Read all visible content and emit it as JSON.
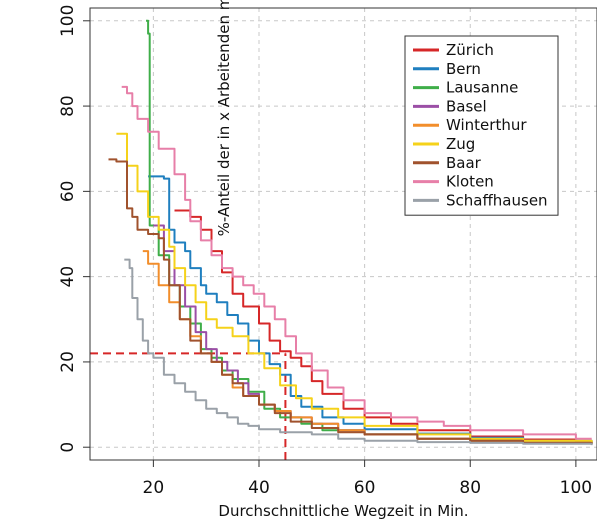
{
  "chart_data": {
    "type": "line",
    "title": "",
    "xlabel": "Durchschnittliche Wegzeit in Min.",
    "ylabel": "%-Anteil der in x Arbeitenden mit Wegzeit grösser als ...",
    "xlim": [
      8,
      104
    ],
    "ylim": [
      -3,
      103
    ],
    "xticks": [
      20,
      40,
      60,
      80,
      100
    ],
    "yticks": [
      0,
      20,
      40,
      60,
      80,
      100
    ],
    "grid": true,
    "legend_position": "top-right",
    "reference_lines": [
      {
        "type": "horizontal",
        "y": 22,
        "x_from": 8,
        "x_to": 45,
        "color": "#d62728"
      },
      {
        "type": "vertical",
        "x": 45,
        "y_from": -3,
        "y_to": 22,
        "color": "#d62728"
      }
    ],
    "series": [
      {
        "name": "Zürich",
        "color": "#d62728",
        "points": [
          [
            24,
            55.5
          ],
          [
            27,
            54
          ],
          [
            29,
            51
          ],
          [
            31,
            46
          ],
          [
            33,
            41
          ],
          [
            35,
            36
          ],
          [
            37,
            33
          ],
          [
            40,
            29
          ],
          [
            42,
            25
          ],
          [
            44,
            22.5
          ],
          [
            46,
            21
          ],
          [
            48,
            19
          ],
          [
            50,
            15.5
          ],
          [
            52,
            12.5
          ],
          [
            56,
            9
          ],
          [
            60,
            7
          ],
          [
            65,
            5.5
          ],
          [
            70,
            4
          ],
          [
            80,
            2.5
          ],
          [
            90,
            1.8
          ],
          [
            100,
            1.3
          ],
          [
            103,
            1.2
          ]
        ]
      },
      {
        "name": "Bern",
        "color": "#1f7fbf",
        "points": [
          [
            19,
            63.5
          ],
          [
            22,
            63
          ],
          [
            23,
            51
          ],
          [
            24,
            48
          ],
          [
            26,
            46
          ],
          [
            27,
            42
          ],
          [
            29,
            38
          ],
          [
            30,
            36
          ],
          [
            32,
            34
          ],
          [
            34,
            31
          ],
          [
            36,
            29
          ],
          [
            38,
            25
          ],
          [
            40,
            22
          ],
          [
            42,
            19.5
          ],
          [
            44,
            17
          ],
          [
            46,
            12
          ],
          [
            48,
            9.5
          ],
          [
            52,
            7
          ],
          [
            56,
            5.5
          ],
          [
            60,
            4.2
          ],
          [
            70,
            3.2
          ],
          [
            80,
            2.2
          ],
          [
            90,
            1.5
          ],
          [
            103,
            1
          ]
        ]
      },
      {
        "name": "Lausanne",
        "color": "#3fae49",
        "points": [
          [
            18.6,
            100
          ],
          [
            19,
            97
          ],
          [
            19.3,
            52
          ],
          [
            21,
            45
          ],
          [
            23,
            38
          ],
          [
            25,
            33
          ],
          [
            27,
            29
          ],
          [
            29,
            23
          ],
          [
            31,
            21
          ],
          [
            33,
            18
          ],
          [
            35,
            16
          ],
          [
            38,
            13
          ],
          [
            41,
            9
          ],
          [
            44,
            7
          ],
          [
            48,
            5.5
          ],
          [
            52,
            4
          ],
          [
            60,
            3
          ],
          [
            70,
            2
          ],
          [
            80,
            1.5
          ],
          [
            90,
            1
          ],
          [
            103,
            0.8
          ]
        ]
      },
      {
        "name": "Basel",
        "color": "#9b4fa6",
        "points": [
          [
            20,
            52
          ],
          [
            22,
            46
          ],
          [
            24,
            38
          ],
          [
            26,
            33
          ],
          [
            28,
            27
          ],
          [
            30,
            23
          ],
          [
            32,
            20
          ],
          [
            34,
            18
          ],
          [
            36,
            15
          ],
          [
            38,
            12.5
          ],
          [
            40,
            10
          ],
          [
            43,
            8.5
          ],
          [
            46,
            7
          ],
          [
            50,
            5.5
          ],
          [
            55,
            4
          ],
          [
            60,
            3
          ],
          [
            70,
            2
          ],
          [
            80,
            1.5
          ],
          [
            90,
            1
          ],
          [
            103,
            0.8
          ]
        ]
      },
      {
        "name": "Winterthur",
        "color": "#f28e2b",
        "points": [
          [
            18,
            46
          ],
          [
            19,
            43
          ],
          [
            21,
            38
          ],
          [
            23,
            34
          ],
          [
            25,
            30
          ],
          [
            27,
            26
          ],
          [
            29,
            22
          ],
          [
            31,
            20
          ],
          [
            33,
            17
          ],
          [
            35,
            14
          ],
          [
            37,
            12
          ],
          [
            40,
            10
          ],
          [
            43,
            8.5
          ],
          [
            46,
            7
          ],
          [
            50,
            5.5
          ],
          [
            55,
            4
          ],
          [
            60,
            3
          ],
          [
            70,
            2
          ],
          [
            80,
            1.5
          ],
          [
            90,
            1
          ],
          [
            103,
            0.8
          ]
        ]
      },
      {
        "name": "Zug",
        "color": "#f5d21a",
        "points": [
          [
            13,
            73.5
          ],
          [
            15,
            66
          ],
          [
            17,
            60
          ],
          [
            19,
            54
          ],
          [
            21,
            51
          ],
          [
            23,
            47
          ],
          [
            24,
            42
          ],
          [
            26,
            38
          ],
          [
            28,
            34
          ],
          [
            30,
            30
          ],
          [
            32,
            28
          ],
          [
            35,
            26
          ],
          [
            38,
            22
          ],
          [
            41,
            18.5
          ],
          [
            44,
            14.5
          ],
          [
            47,
            11.5
          ],
          [
            50,
            9
          ],
          [
            55,
            7
          ],
          [
            60,
            5
          ],
          [
            70,
            3
          ],
          [
            80,
            2
          ],
          [
            90,
            1.5
          ],
          [
            103,
            1
          ]
        ]
      },
      {
        "name": "Baar",
        "color": "#a0522d",
        "points": [
          [
            11.5,
            67.5
          ],
          [
            13,
            67
          ],
          [
            15,
            56
          ],
          [
            16,
            54
          ],
          [
            17,
            51
          ],
          [
            19,
            50
          ],
          [
            21,
            49
          ],
          [
            22,
            44
          ],
          [
            23,
            38
          ],
          [
            25,
            30
          ],
          [
            27,
            25
          ],
          [
            29,
            22
          ],
          [
            31,
            20
          ],
          [
            33,
            17
          ],
          [
            35,
            15
          ],
          [
            37,
            12
          ],
          [
            40,
            10
          ],
          [
            43,
            8
          ],
          [
            46,
            6
          ],
          [
            50,
            4.5
          ],
          [
            55,
            3.5
          ],
          [
            60,
            3
          ],
          [
            70,
            2
          ],
          [
            80,
            1.5
          ],
          [
            90,
            1
          ],
          [
            103,
            0.8
          ]
        ]
      },
      {
        "name": "Kloten",
        "color": "#e77fa8",
        "points": [
          [
            14,
            84.5
          ],
          [
            15,
            83
          ],
          [
            16,
            80
          ],
          [
            17,
            77
          ],
          [
            19,
            74
          ],
          [
            21,
            70
          ],
          [
            24,
            64
          ],
          [
            26,
            58
          ],
          [
            27,
            53
          ],
          [
            29,
            48.5
          ],
          [
            31,
            45
          ],
          [
            33,
            42
          ],
          [
            35,
            40
          ],
          [
            37,
            38
          ],
          [
            39,
            36
          ],
          [
            41,
            33
          ],
          [
            43,
            30
          ],
          [
            45,
            26
          ],
          [
            47,
            22
          ],
          [
            50,
            18
          ],
          [
            53,
            14
          ],
          [
            56,
            11
          ],
          [
            60,
            8
          ],
          [
            65,
            7
          ],
          [
            70,
            6
          ],
          [
            75,
            5
          ],
          [
            80,
            4
          ],
          [
            90,
            3
          ],
          [
            100,
            2
          ],
          [
            103,
            2
          ]
        ]
      },
      {
        "name": "Schaffhausen",
        "color": "#9aa1a8",
        "points": [
          [
            14.5,
            44
          ],
          [
            15.5,
            42
          ],
          [
            16,
            35
          ],
          [
            17,
            30
          ],
          [
            18,
            25
          ],
          [
            19,
            22
          ],
          [
            20,
            21
          ],
          [
            22,
            17
          ],
          [
            24,
            15
          ],
          [
            26,
            13
          ],
          [
            28,
            11
          ],
          [
            30,
            9
          ],
          [
            32,
            8
          ],
          [
            34,
            7
          ],
          [
            36,
            5.5
          ],
          [
            38,
            5
          ],
          [
            40,
            4.2
          ],
          [
            44,
            3.5
          ],
          [
            50,
            3
          ],
          [
            55,
            2
          ],
          [
            60,
            1.5
          ],
          [
            70,
            1.2
          ],
          [
            80,
            1
          ],
          [
            90,
            0.8
          ],
          [
            103,
            0.5
          ]
        ]
      }
    ]
  }
}
